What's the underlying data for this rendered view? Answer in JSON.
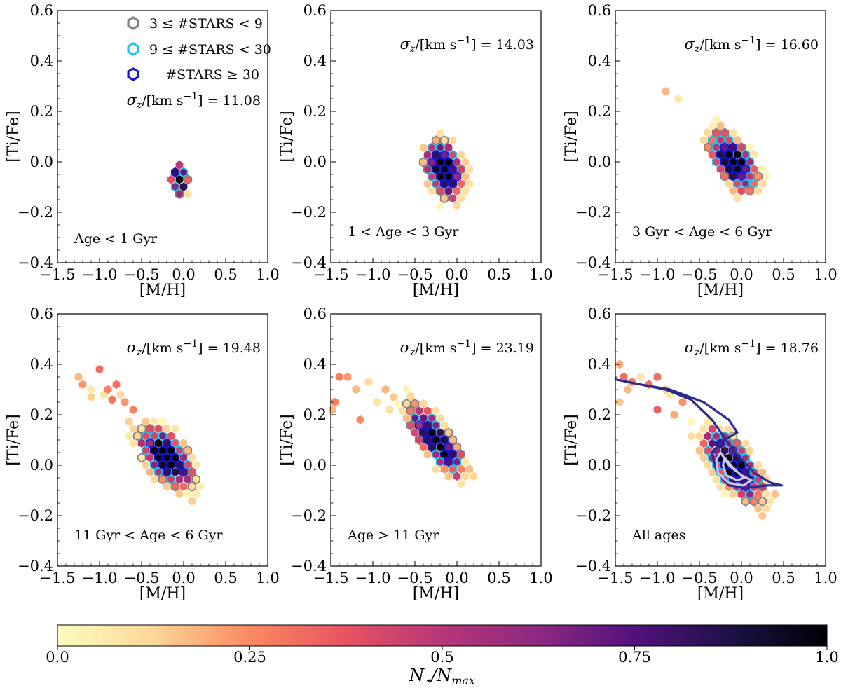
{
  "legend": {
    "items": [
      {
        "label": "3 ≤ #STARS < 9",
        "color": "#808080"
      },
      {
        "label": "9 ≤ #STARS < 30",
        "color": "#1ec8f0"
      },
      {
        "label": "#STARS ≥ 30",
        "color": "#1515d8"
      }
    ]
  },
  "colorbar": {
    "label": "N⋆/N_max",
    "label_main": "N",
    "label_sub1": "⋆",
    "label_sep": "/N",
    "label_sub2": "max",
    "ticks": [
      "0.0",
      "0.25",
      "0.5",
      "0.75",
      "1.0"
    ],
    "tick_values": [
      0,
      0.25,
      0.5,
      0.75,
      1.0
    ]
  },
  "sigma_label": {
    "symbol": "σ",
    "sub": "z",
    "unit_prefix": "/[km s",
    "unit_exp": "−1",
    "unit_suffix": "] = "
  },
  "chart_data": [
    {
      "type": "heatmap",
      "title": "Age < 1 Gyr",
      "sigma_z": "11.08",
      "xlabel": "[M/H]",
      "ylabel": "[Ti/Fe]",
      "xlim": [
        -1.5,
        1.0
      ],
      "ylim": [
        -0.4,
        0.6
      ],
      "xticks": [
        "−1.5",
        "−1.0",
        "−0.5",
        "0.0",
        "0.5",
        "1.0"
      ],
      "yticks": [
        "−0.4",
        "−0.2",
        "0.0",
        "0.2",
        "0.4",
        "0.6"
      ],
      "distribution": {
        "center": [
          -0.05,
          -0.07
        ],
        "spread": [
          0.1,
          0.06
        ],
        "corr": -0.2,
        "extent": 1.35,
        "seed": 11
      }
    },
    {
      "type": "heatmap",
      "title": "1 < Age < 3 Gyr",
      "sigma_z": "14.03",
      "xlabel": "[M/H]",
      "ylabel": "[Ti/Fe]",
      "xlim": [
        -1.5,
        1.0
      ],
      "ylim": [
        -0.4,
        0.6
      ],
      "xticks": [
        "−1.5",
        "−1.0",
        "−0.5",
        "0.0",
        "0.5",
        "1.0"
      ],
      "yticks": [
        "−0.4",
        "−0.2",
        "0.0",
        "0.2",
        "0.4",
        "0.6"
      ],
      "distribution": {
        "center": [
          -0.15,
          -0.03
        ],
        "spread": [
          0.2,
          0.1
        ],
        "corr": -0.35,
        "extent": 1.5,
        "seed": 23
      }
    },
    {
      "type": "heatmap",
      "title": "3 Gyr < Age < 6 Gyr",
      "sigma_z": "16.60",
      "xlabel": "[M/H]",
      "ylabel": "[Ti/Fe]",
      "xlim": [
        -1.5,
        1.0
      ],
      "ylim": [
        -0.4,
        0.6
      ],
      "xticks": [
        "−1.5",
        "−1.0",
        "−0.5",
        "0.0",
        "0.5",
        "1.0"
      ],
      "yticks": [
        "−0.4",
        "−0.2",
        "0.0",
        "0.2",
        "0.4",
        "0.6"
      ],
      "distribution": {
        "center": [
          -0.1,
          0.0
        ],
        "spread": [
          0.25,
          0.1
        ],
        "corr": -0.6,
        "extent": 1.55,
        "seed": 37
      },
      "outliers": [
        [
          -0.9,
          0.28
        ],
        [
          -0.75,
          0.25
        ]
      ]
    },
    {
      "type": "heatmap",
      "title": "11 Gyr < Age < 6 Gyr",
      "sigma_z": "19.48",
      "xlabel": "[M/H]",
      "ylabel": "[Ti/Fe]",
      "xlim": [
        -1.5,
        1.0
      ],
      "ylim": [
        -0.4,
        0.6
      ],
      "xticks": [
        "−1.5",
        "−1.0",
        "−0.5",
        "0.0",
        "0.5",
        "1.0"
      ],
      "yticks": [
        "−0.4",
        "−0.2",
        "0.0",
        "0.2",
        "0.4",
        "0.6"
      ],
      "distribution": {
        "center": [
          -0.2,
          0.03
        ],
        "spread": [
          0.28,
          0.1
        ],
        "corr": -0.55,
        "extent": 1.55,
        "seed": 41
      },
      "outliers": [
        [
          -1.25,
          0.35
        ],
        [
          -1.2,
          0.32
        ],
        [
          -1.1,
          0.3
        ],
        [
          -1.0,
          0.38
        ],
        [
          -0.95,
          0.28
        ],
        [
          -0.9,
          0.3
        ],
        [
          -0.85,
          0.26
        ],
        [
          -0.8,
          0.32
        ],
        [
          -0.75,
          0.28
        ],
        [
          -0.7,
          0.25
        ],
        [
          -1.1,
          0.27
        ],
        [
          -0.6,
          0.22
        ]
      ]
    },
    {
      "type": "heatmap",
      "title": "Age > 11 Gyr",
      "sigma_z": "23.19",
      "xlabel": "[M/H]",
      "ylabel": "[Ti/Fe]",
      "xlim": [
        -1.5,
        1.0
      ],
      "ylim": [
        -0.4,
        0.6
      ],
      "xticks": [
        "−1.5",
        "−1.0",
        "−0.5",
        "0.0",
        "0.5",
        "1.0"
      ],
      "yticks": [
        "−0.4",
        "−0.2",
        "0.0",
        "0.2",
        "0.4",
        "0.6"
      ],
      "distribution": {
        "center": [
          -0.25,
          0.1
        ],
        "spread": [
          0.28,
          0.12
        ],
        "corr": -0.8,
        "extent": 1.55,
        "seed": 53
      },
      "outliers": [
        [
          -1.45,
          0.25
        ],
        [
          -1.4,
          0.35
        ],
        [
          -1.3,
          0.35
        ],
        [
          -1.2,
          0.3
        ],
        [
          -1.15,
          0.18
        ],
        [
          -1.05,
          0.33
        ],
        [
          -0.95,
          0.25
        ],
        [
          -0.85,
          0.3
        ],
        [
          -0.8,
          0.22
        ],
        [
          -0.75,
          0.27
        ],
        [
          -1.48,
          0.22
        ]
      ]
    },
    {
      "type": "heatmap",
      "title": "All ages",
      "sigma_z": "18.76",
      "xlabel": "[M/H]",
      "ylabel": "[Ti/Fe]",
      "xlim": [
        -1.5,
        1.0
      ],
      "ylim": [
        -0.4,
        0.6
      ],
      "xticks": [
        "−1.5",
        "−1.0",
        "−0.5",
        "0.0",
        "0.5",
        "1.0"
      ],
      "yticks": [
        "−0.4",
        "−0.2",
        "0.0",
        "0.2",
        "0.4",
        "0.6"
      ],
      "distribution": {
        "center": [
          -0.1,
          0.0
        ],
        "spread": [
          0.3,
          0.12
        ],
        "corr": -0.7,
        "extent": 1.6,
        "seed": 67
      },
      "outliers": [
        [
          -1.45,
          0.4
        ],
        [
          -1.4,
          0.35
        ],
        [
          -1.35,
          0.3
        ],
        [
          -1.3,
          0.33
        ],
        [
          -1.2,
          0.35
        ],
        [
          -1.1,
          0.32
        ],
        [
          -1.0,
          0.35
        ],
        [
          -0.9,
          0.3
        ],
        [
          -0.85,
          0.28
        ],
        [
          -1.45,
          0.25
        ],
        [
          -1.0,
          0.22
        ],
        [
          -0.7,
          0.25
        ],
        [
          -0.8,
          0.2
        ]
      ],
      "contours": [
        {
          "color": "#2b2b8c",
          "points": [
            [
              -1.5,
              0.34
            ],
            [
              -1.2,
              0.32
            ],
            [
              -0.9,
              0.3
            ],
            [
              -0.6,
              0.26
            ],
            [
              -0.35,
              0.18
            ],
            [
              -0.1,
              0.06
            ],
            [
              0.15,
              -0.03
            ],
            [
              0.35,
              -0.07
            ],
            [
              0.48,
              -0.08
            ],
            [
              0.3,
              -0.08
            ],
            [
              0.05,
              -0.09
            ],
            [
              -0.15,
              -0.08
            ],
            [
              -0.3,
              -0.02
            ],
            [
              -0.35,
              0.05
            ],
            [
              -0.2,
              0.1
            ],
            [
              -0.05,
              0.13
            ],
            [
              -0.15,
              0.18
            ],
            [
              -0.45,
              0.25
            ],
            [
              -0.85,
              0.3
            ],
            [
              -1.2,
              0.32
            ],
            [
              -1.5,
              0.34
            ]
          ]
        },
        {
          "color": "#c8c8ee",
          "points": [
            [
              -0.25,
              0.05
            ],
            [
              -0.15,
              0.0
            ],
            [
              0.0,
              -0.04
            ],
            [
              0.12,
              -0.06
            ],
            [
              0.02,
              -0.08
            ],
            [
              -0.15,
              -0.07
            ],
            [
              -0.28,
              -0.03
            ],
            [
              -0.3,
              0.02
            ],
            [
              -0.25,
              0.05
            ]
          ]
        },
        {
          "color": "#c8c8ee",
          "points": [
            [
              -0.2,
              0.03
            ],
            [
              -0.1,
              -0.01
            ],
            [
              0.03,
              -0.05
            ],
            [
              -0.05,
              -0.06
            ],
            [
              -0.18,
              -0.04
            ],
            [
              -0.22,
              0.0
            ],
            [
              -0.2,
              0.03
            ]
          ]
        }
      ]
    }
  ]
}
